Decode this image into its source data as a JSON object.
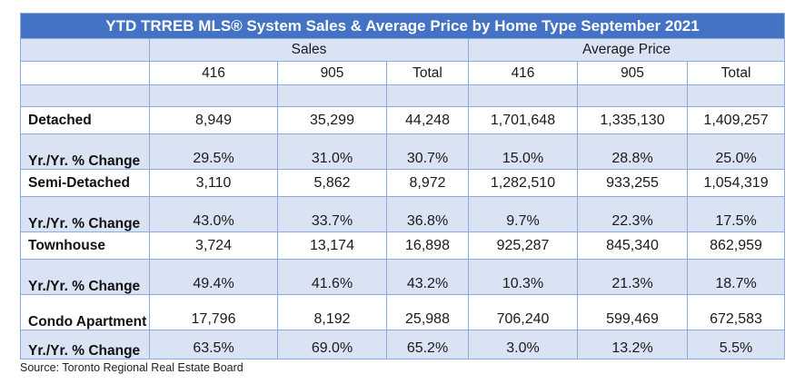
{
  "title": "YTD TRREB MLS® System Sales & Average Price by Home Type September 2021",
  "groups": {
    "sales": "Sales",
    "average_price": "Average Price"
  },
  "columns": {
    "c416": "416",
    "c905": "905",
    "total": "Total"
  },
  "rows": [
    {
      "label": "Detached",
      "values": [
        "8,949",
        "35,299",
        "44,248",
        "1,701,648",
        "1,335,130",
        "1,409,257"
      ]
    },
    {
      "label": "Yr./Yr. % Change",
      "values": [
        "29.5%",
        "31.0%",
        "30.7%",
        "15.0%",
        "28.8%",
        "25.0%"
      ]
    },
    {
      "label": "Semi-Detached",
      "values": [
        "3,110",
        "5,862",
        "8,972",
        "1,282,510",
        "933,255",
        "1,054,319"
      ]
    },
    {
      "label": "Yr./Yr. % Change",
      "values": [
        "43.0%",
        "33.7%",
        "36.8%",
        "9.7%",
        "22.3%",
        "17.5%"
      ]
    },
    {
      "label": "Townhouse",
      "values": [
        "3,724",
        "13,174",
        "16,898",
        "925,287",
        "845,340",
        "862,959"
      ]
    },
    {
      "label": "Yr./Yr. % Change",
      "values": [
        "49.4%",
        "41.6%",
        "43.2%",
        "10.3%",
        "21.3%",
        "18.7%"
      ]
    },
    {
      "label": "Condo Apartment",
      "values": [
        "17,796",
        "8,192",
        "25,988",
        "706,240",
        "599,469",
        "672,583"
      ]
    },
    {
      "label": "Yr./Yr. % Change",
      "values": [
        "63.5%",
        "69.0%",
        "65.2%",
        "3.0%",
        "13.2%",
        "5.5%"
      ]
    }
  ],
  "source": "Source: Toronto Regional Real Estate Board"
}
